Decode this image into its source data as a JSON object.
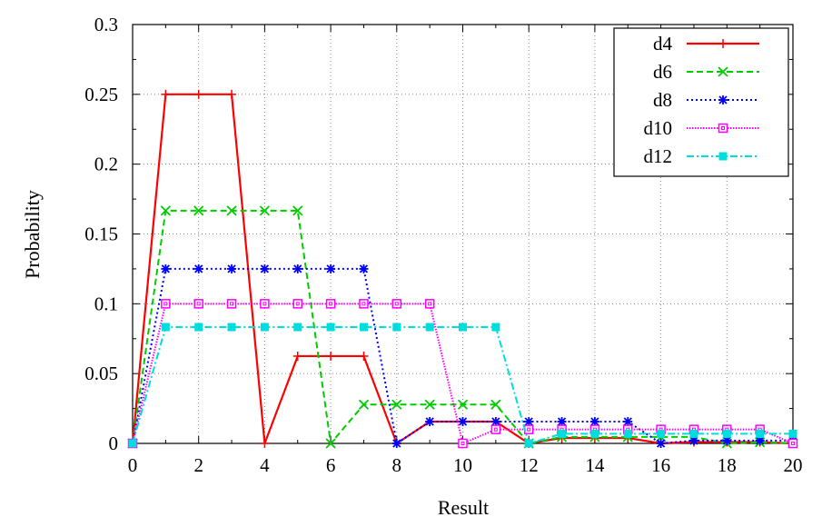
{
  "chart_data": {
    "type": "line",
    "title": "",
    "xlabel": "Result",
    "ylabel": "Probability",
    "xlim": [
      0,
      20
    ],
    "ylim": [
      0,
      0.3
    ],
    "x_ticks": [
      "0",
      "2",
      "4",
      "6",
      "8",
      "10",
      "12",
      "14",
      "16",
      "18",
      "20"
    ],
    "y_ticks": [
      "0",
      "0.05",
      "0.1",
      "0.15",
      "0.2",
      "0.25",
      "0.3"
    ],
    "grid": true,
    "legend_position": "top-right",
    "x": [
      0,
      1,
      2,
      3,
      4,
      5,
      6,
      7,
      8,
      9,
      10,
      11,
      12,
      13,
      14,
      15,
      16,
      17,
      18,
      19,
      20
    ],
    "series": [
      {
        "name": "d4",
        "color": "#ff0000",
        "dash": "solid",
        "marker": "plus",
        "values": [
          0,
          0.25,
          0.25,
          0.25,
          0,
          0.0625,
          0.0625,
          0.0625,
          0,
          0.0156,
          0.0156,
          0.0156,
          0,
          0.0039,
          0.0039,
          0.0039,
          0,
          0.001,
          0.001,
          0.001,
          0
        ]
      },
      {
        "name": "d6",
        "color": "#00cc00",
        "dash": "dashed",
        "marker": "x",
        "values": [
          0,
          0.1667,
          0.1667,
          0.1667,
          0.1667,
          0.1667,
          0,
          0.0278,
          0.0278,
          0.0278,
          0.0278,
          0.0278,
          0,
          0.0046,
          0.0046,
          0.0046,
          0.0046,
          0.0046,
          0,
          0.0008,
          0
        ]
      },
      {
        "name": "d8",
        "color": "#0000ff",
        "dash": "dotted",
        "marker": "star",
        "values": [
          0,
          0.125,
          0.125,
          0.125,
          0.125,
          0.125,
          0.125,
          0.125,
          0,
          0.0156,
          0.0156,
          0.0156,
          0.0156,
          0.0156,
          0.0156,
          0.0156,
          0,
          0.002,
          0.002,
          0.002,
          0.002
        ]
      },
      {
        "name": "d10",
        "color": "#ff00ff",
        "dash": "densedot",
        "marker": "open-square",
        "values": [
          0,
          0.1,
          0.1,
          0.1,
          0.1,
          0.1,
          0.1,
          0.1,
          0.1,
          0.1,
          0,
          0.01,
          0.01,
          0.01,
          0.01,
          0.01,
          0.01,
          0.01,
          0.01,
          0.01,
          0
        ]
      },
      {
        "name": "d12",
        "color": "#00dddd",
        "dash": "dashdot",
        "marker": "filled-square",
        "values": [
          0,
          0.0833,
          0.0833,
          0.0833,
          0.0833,
          0.0833,
          0.0833,
          0.0833,
          0.0833,
          0.0833,
          0.0833,
          0.0833,
          0,
          0.0069,
          0.0069,
          0.0069,
          0.0069,
          0.0069,
          0.0069,
          0.0069,
          0.0069
        ]
      }
    ]
  }
}
